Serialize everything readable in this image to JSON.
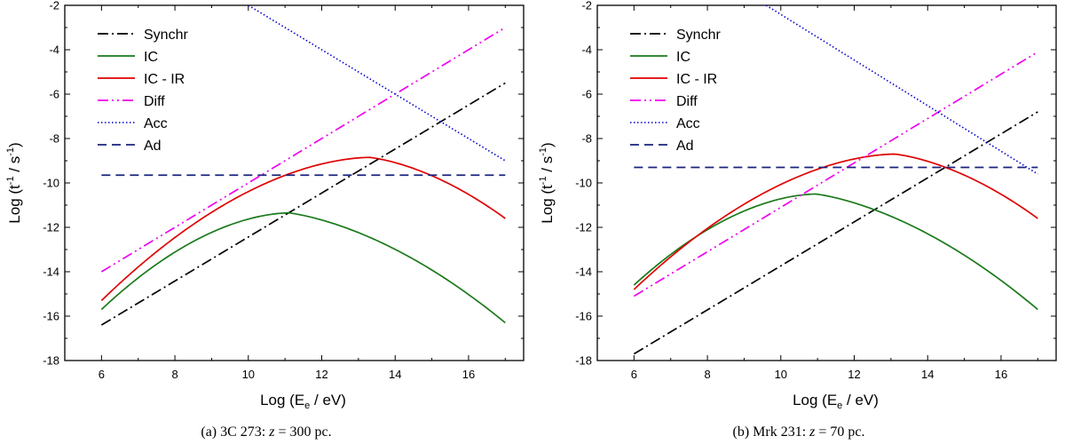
{
  "chart_data": [
    {
      "type": "line",
      "panel": "a",
      "caption": {
        "label": "(a) 3C 273: ",
        "var": "z",
        "rest": " = 300 pc."
      },
      "xlabel": {
        "pre": "Log (E",
        "sub": "e",
        "post": " / eV)"
      },
      "ylabel": {
        "pre": "Log (t",
        "sup1": "-1",
        "mid": " / s",
        "sup2": "-1",
        "post": ")"
      },
      "xlim": [
        5,
        17.5
      ],
      "ylim": [
        -18,
        -2
      ],
      "xticks": [
        6,
        8,
        10,
        12,
        14,
        16
      ],
      "yticks": [
        -2,
        -4,
        -6,
        -8,
        -10,
        -12,
        -14,
        -16,
        -18
      ],
      "legend_position": "top-left",
      "series": [
        {
          "name": "Synchr",
          "color": "#000000",
          "style": "dashdot",
          "shape": "line",
          "x0": 6,
          "y0": -16.4,
          "x1": 17,
          "y1": -5.5
        },
        {
          "name": "IC",
          "color": "#1a7a1a",
          "style": "solid",
          "shape": "peak",
          "x0": 6,
          "y0": -15.7,
          "xp": 11.1,
          "yp": -11.35,
          "x1": 17,
          "y1": -16.3
        },
        {
          "name": "IC - IR",
          "color": "#e00000",
          "style": "solid",
          "shape": "peak",
          "x0": 6,
          "y0": -15.3,
          "xp": 13.3,
          "yp": -8.85,
          "x1": 17,
          "y1": -11.6
        },
        {
          "name": "Diff",
          "color": "#ee00ee",
          "style": "dashdotdot",
          "shape": "line",
          "x0": 6,
          "y0": -14.0,
          "x1": 17,
          "y1": -3.0
        },
        {
          "name": "Acc",
          "color": "#0000cc",
          "style": "dotted",
          "shape": "line",
          "x0": 10.0,
          "y0": -2.0,
          "x1": 17,
          "y1": -9.0
        },
        {
          "name": "Ad",
          "color": "#1a237e",
          "style": "dashed",
          "shape": "line",
          "x0": 6,
          "y0": -9.65,
          "x1": 17,
          "y1": -9.65
        }
      ]
    },
    {
      "type": "line",
      "panel": "b",
      "caption": {
        "label": "(b) Mrk 231: ",
        "var": "z",
        "rest": " = 70 pc."
      },
      "xlabel": {
        "pre": "Log (E",
        "sub": "e",
        "post": " / eV)"
      },
      "ylabel": {
        "pre": "Log (t",
        "sup1": "-1",
        "mid": " / s",
        "sup2": "-1",
        "post": ")"
      },
      "xlim": [
        5,
        17.5
      ],
      "ylim": [
        -18,
        -2
      ],
      "xticks": [
        6,
        8,
        10,
        12,
        14,
        16
      ],
      "yticks": [
        -2,
        -4,
        -6,
        -8,
        -10,
        -12,
        -14,
        -16,
        -18
      ],
      "legend_position": "top-left",
      "series": [
        {
          "name": "Synchr",
          "color": "#000000",
          "style": "dashdot",
          "shape": "line",
          "x0": 6,
          "y0": -17.7,
          "x1": 17,
          "y1": -6.8
        },
        {
          "name": "IC",
          "color": "#1a7a1a",
          "style": "solid",
          "shape": "peak",
          "x0": 6,
          "y0": -14.6,
          "xp": 10.95,
          "yp": -10.5,
          "x1": 17,
          "y1": -15.7
        },
        {
          "name": "IC - IR",
          "color": "#e00000",
          "style": "solid",
          "shape": "peak",
          "x0": 6,
          "y0": -14.8,
          "xp": 13.1,
          "yp": -8.7,
          "x1": 17,
          "y1": -11.6
        },
        {
          "name": "Diff",
          "color": "#ee00ee",
          "style": "dashdotdot",
          "shape": "line",
          "x0": 6,
          "y0": -15.1,
          "x1": 17,
          "y1": -4.1
        },
        {
          "name": "Acc",
          "color": "#0000cc",
          "style": "dotted",
          "shape": "line",
          "x0": 9.6,
          "y0": -2.0,
          "x1": 17,
          "y1": -9.6
        },
        {
          "name": "Ad",
          "color": "#1a237e",
          "style": "dashed",
          "shape": "line",
          "x0": 6,
          "y0": -9.3,
          "x1": 17,
          "y1": -9.3
        }
      ]
    }
  ]
}
